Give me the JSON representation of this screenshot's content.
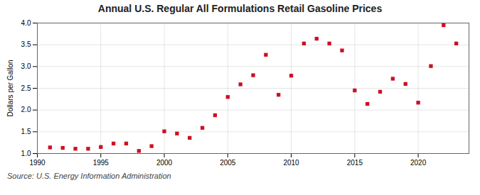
{
  "chart_data": {
    "type": "scatter",
    "title": "Annual U.S. Regular All Formulations Retail Gasoline Prices",
    "ylabel": "Dollars per Gallon",
    "annotation": "Source: U.S. Energy Information Administration",
    "x": [
      1991,
      1992,
      1993,
      1994,
      1995,
      1996,
      1997,
      1998,
      1999,
      2000,
      2001,
      2002,
      2003,
      2004,
      2005,
      2006,
      2007,
      2008,
      2009,
      2010,
      2011,
      2012,
      2013,
      2014,
      2015,
      2016,
      2017,
      2018,
      2019,
      2020,
      2021,
      2022,
      2023
    ],
    "values": [
      1.14,
      1.13,
      1.11,
      1.11,
      1.15,
      1.23,
      1.23,
      1.06,
      1.17,
      1.51,
      1.46,
      1.36,
      1.59,
      1.88,
      2.3,
      2.59,
      2.8,
      3.27,
      2.35,
      2.79,
      3.53,
      3.64,
      3.53,
      3.37,
      2.45,
      2.14,
      2.42,
      2.72,
      2.6,
      2.17,
      3.01,
      3.95,
      3.53
    ],
    "color": "#CC1122",
    "marker": "square",
    "xlim": [
      1990,
      2024
    ],
    "ylim": [
      1.0,
      4.0
    ],
    "xticks": [
      1990,
      1995,
      2000,
      2005,
      2010,
      2015,
      2020
    ],
    "yticks": [
      {
        "value": 1.0,
        "label": "1.0"
      },
      1.5,
      {
        "value": 2.0,
        "label": "2.0"
      },
      2.5,
      {
        "value": 3.0,
        "label": "3.0"
      },
      3.5,
      {
        "value": 4.0,
        "label": "4.0"
      }
    ],
    "grid": true
  }
}
